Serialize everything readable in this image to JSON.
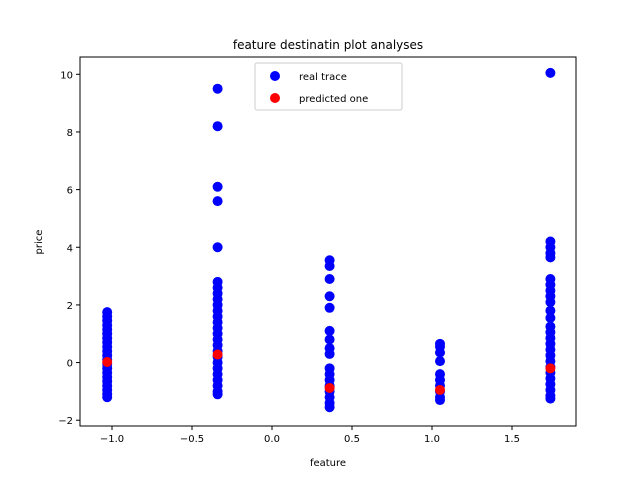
{
  "chart_data": {
    "type": "scatter",
    "title": "feature destinatin plot analyses",
    "xlabel": "feature",
    "ylabel": "price",
    "xlim": [
      -1.2,
      1.9
    ],
    "ylim": [
      -2.2,
      10.6
    ],
    "xticks": [
      -1.0,
      -0.5,
      0.0,
      0.5,
      1.0,
      1.5
    ],
    "xtick_labels": [
      "−1.0",
      "−0.5",
      "0.0",
      "0.5",
      "1.0",
      "1.5"
    ],
    "yticks": [
      -2,
      0,
      2,
      4,
      6,
      8,
      10
    ],
    "ytick_labels": [
      "−2",
      "0",
      "2",
      "4",
      "6",
      "8",
      "10"
    ],
    "grid": false,
    "legend_position": "top-center",
    "series": [
      {
        "name": "real trace",
        "color": "#0000ff",
        "points": [
          [
            -1.03,
            1.75
          ],
          [
            -1.03,
            1.6
          ],
          [
            -1.03,
            1.45
          ],
          [
            -1.03,
            1.3
          ],
          [
            -1.03,
            1.15
          ],
          [
            -1.03,
            1.0
          ],
          [
            -1.03,
            0.85
          ],
          [
            -1.03,
            0.7
          ],
          [
            -1.03,
            0.55
          ],
          [
            -1.03,
            0.4
          ],
          [
            -1.03,
            0.25
          ],
          [
            -1.03,
            0.1
          ],
          [
            -1.03,
            -0.05
          ],
          [
            -1.03,
            -0.2
          ],
          [
            -1.03,
            -0.35
          ],
          [
            -1.03,
            -0.5
          ],
          [
            -1.03,
            -0.65
          ],
          [
            -1.03,
            -0.8
          ],
          [
            -1.03,
            -0.95
          ],
          [
            -1.03,
            -1.1
          ],
          [
            -1.03,
            -1.2
          ],
          [
            -0.34,
            9.5
          ],
          [
            -0.34,
            8.2
          ],
          [
            -0.34,
            6.1
          ],
          [
            -0.34,
            5.6
          ],
          [
            -0.34,
            4.0
          ],
          [
            -0.34,
            2.8
          ],
          [
            -0.34,
            2.6
          ],
          [
            -0.34,
            2.4
          ],
          [
            -0.34,
            2.2
          ],
          [
            -0.34,
            2.0
          ],
          [
            -0.34,
            1.8
          ],
          [
            -0.34,
            1.6
          ],
          [
            -0.34,
            1.4
          ],
          [
            -0.34,
            1.2
          ],
          [
            -0.34,
            1.0
          ],
          [
            -0.34,
            0.8
          ],
          [
            -0.34,
            0.6
          ],
          [
            -0.34,
            0.4
          ],
          [
            -0.34,
            0.2
          ],
          [
            -0.34,
            0.0
          ],
          [
            -0.34,
            -0.2
          ],
          [
            -0.34,
            -0.4
          ],
          [
            -0.34,
            -0.6
          ],
          [
            -0.34,
            -0.8
          ],
          [
            -0.34,
            -1.0
          ],
          [
            -0.34,
            -1.1
          ],
          [
            0.36,
            3.55
          ],
          [
            0.36,
            3.35
          ],
          [
            0.36,
            2.9
          ],
          [
            0.36,
            2.3
          ],
          [
            0.36,
            1.9
          ],
          [
            0.36,
            1.1
          ],
          [
            0.36,
            0.8
          ],
          [
            0.36,
            0.5
          ],
          [
            0.36,
            0.3
          ],
          [
            0.36,
            -0.2
          ],
          [
            0.36,
            -0.4
          ],
          [
            0.36,
            -0.6
          ],
          [
            0.36,
            -0.8
          ],
          [
            0.36,
            -1.0
          ],
          [
            0.36,
            -1.2
          ],
          [
            0.36,
            -1.4
          ],
          [
            0.36,
            -1.55
          ],
          [
            1.05,
            0.65
          ],
          [
            1.05,
            0.55
          ],
          [
            1.05,
            0.35
          ],
          [
            1.05,
            0.05
          ],
          [
            1.05,
            -0.4
          ],
          [
            1.05,
            -0.6
          ],
          [
            1.05,
            -0.8
          ],
          [
            1.05,
            -1.0
          ],
          [
            1.05,
            -1.2
          ],
          [
            1.05,
            -1.3
          ],
          [
            1.74,
            10.05
          ],
          [
            1.74,
            4.2
          ],
          [
            1.74,
            4.0
          ],
          [
            1.74,
            3.8
          ],
          [
            1.74,
            3.65
          ],
          [
            1.74,
            2.9
          ],
          [
            1.74,
            2.7
          ],
          [
            1.74,
            2.5
          ],
          [
            1.74,
            2.3
          ],
          [
            1.74,
            2.1
          ],
          [
            1.74,
            1.8
          ],
          [
            1.74,
            1.55
          ],
          [
            1.74,
            1.25
          ],
          [
            1.74,
            1.05
          ],
          [
            1.74,
            0.85
          ],
          [
            1.74,
            0.65
          ],
          [
            1.74,
            0.45
          ],
          [
            1.74,
            0.25
          ],
          [
            1.74,
            0.05
          ],
          [
            1.74,
            -0.15
          ],
          [
            1.74,
            -0.35
          ],
          [
            1.74,
            -0.55
          ],
          [
            1.74,
            -0.75
          ],
          [
            1.74,
            -0.95
          ],
          [
            1.74,
            -1.15
          ],
          [
            1.74,
            -1.25
          ]
        ]
      },
      {
        "name": "predicted one",
        "color": "#ff0000",
        "points": [
          [
            -1.03,
            0.02
          ],
          [
            -0.34,
            0.28
          ],
          [
            0.36,
            -0.88
          ],
          [
            1.05,
            -0.95
          ],
          [
            1.74,
            -0.2
          ]
        ]
      }
    ]
  }
}
